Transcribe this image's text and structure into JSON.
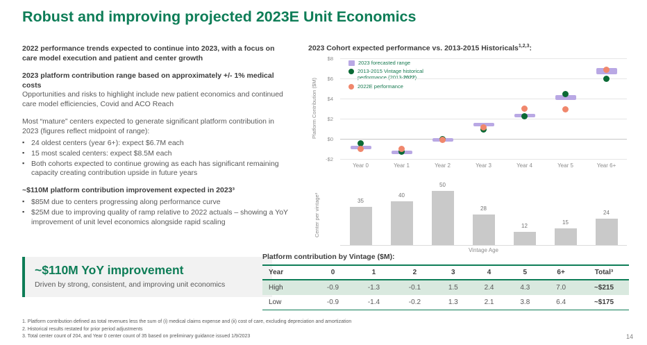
{
  "slide": {
    "title": "Robust and improving projected 2023E Unit Economics",
    "page_number": "14",
    "accent_color": "#0e7d57"
  },
  "left": {
    "para1": "2022 performance trends expected to continue into 2023, with a focus on care model execution and patient and center growth",
    "para2_bold": "2023 platform contribution range based on approximately +/- 1% medical costs",
    "para2_rest": "Opportunities and risks to highlight include new patient economics and continued care model efficiencies, Covid and ACO Reach",
    "para3": "Most “mature” centers expected to generate significant platform contribution in 2023 (figures reflect midpoint of range):",
    "bullets_mature": [
      "24 oldest centers (year 6+): expect $6.7M each",
      "15 most scaled centers: expect $8.5M each",
      "Both cohorts expected to continue growing as each has significant remaining capacity creating contribution upside in future years"
    ],
    "para4": "~$110M platform contribution improvement expected in 2023³",
    "bullets_improvement": [
      "$85M due to centers progressing along performance curve",
      "$25M due to improving quality of ramp relative to 2022 actuals – showing a YoY improvement of unit level economics alongside rapid scaling"
    ],
    "callout": {
      "headline": "~$110M YoY improvement",
      "subtext": "Driven by strong, consistent, and improving unit economics"
    }
  },
  "right": {
    "chart_heading": "2023 Cohort expected performance vs. 2013-2015 Historicals",
    "chart_heading_sup": "1,2,3",
    "chart_heading_suffix": ":"
  },
  "chart_data": [
    {
      "type": "scatter",
      "title": "2023 Cohort expected performance vs. 2013-2015 Historicals",
      "ylabel": "Platform Contribution ($M)",
      "ylim": [
        -2,
        8
      ],
      "grid": true,
      "legend_position": "top-left",
      "yticks": [
        {
          "label": "$8",
          "value": 8
        },
        {
          "label": "$6",
          "value": 6
        },
        {
          "label": "$4",
          "value": 4
        },
        {
          "label": "$2",
          "value": 2
        },
        {
          "label": "$0",
          "value": 0
        },
        {
          "label": "-$2",
          "value": -2
        }
      ],
      "categories": [
        "Year 0",
        "Year 1",
        "Year 2",
        "Year 3",
        "Year 4",
        "Year 5",
        "Year 6+"
      ],
      "series": [
        {
          "name": "2023 forecasted range",
          "type": "range",
          "color": "#b9a8e4",
          "low": [
            -0.9,
            -1.4,
            -0.2,
            1.3,
            2.1,
            3.8,
            6.4
          ],
          "high": [
            -0.9,
            -1.3,
            -0.1,
            1.5,
            2.4,
            4.3,
            7.0
          ]
        },
        {
          "name": "2013-2015 Vintage historical performance (2013-2022)",
          "name_segments": [
            {
              "text": "2013-2015 Vintage historical performance (2013-"
            },
            {
              "text": "2022",
              "bold": true
            },
            {
              "text": ")"
            }
          ],
          "type": "point",
          "color": "#0b6a35",
          "values": [
            -0.5,
            -1.3,
            -0.05,
            0.9,
            2.2,
            4.4,
            5.9
          ]
        },
        {
          "name": "2022E performance",
          "type": "point",
          "color": "#f0876c",
          "values": [
            -1.0,
            -1.05,
            -0.15,
            1.1,
            3.0,
            2.9,
            6.85
          ]
        }
      ]
    },
    {
      "type": "bar",
      "ylabel": "Center per vintage³",
      "xlabel": "Vintage Age",
      "categories": [
        "Year 0",
        "Year 1",
        "Year 2",
        "Year 3",
        "Year 4",
        "Year 5",
        "Year 6+"
      ],
      "values": [
        35,
        40,
        50,
        28,
        12,
        15,
        24
      ],
      "ylim": [
        0,
        50
      ],
      "color": "#c9c9c9"
    },
    {
      "type": "table",
      "title": "Platform contribution by Vintage ($M):",
      "headers": [
        "Year",
        "0",
        "1",
        "2",
        "3",
        "4",
        "5",
        "6+",
        "Total³"
      ],
      "rows": [
        {
          "label": "High",
          "values": [
            "-0.9",
            "-1.3",
            "-0.1",
            "1.5",
            "2.4",
            "4.3",
            "7.0"
          ],
          "total": "~$215",
          "highlight": true
        },
        {
          "label": "Low",
          "values": [
            "-0.9",
            "-1.4",
            "-0.2",
            "1.3",
            "2.1",
            "3.8",
            "6.4"
          ],
          "total": "~$175",
          "highlight": false
        }
      ]
    }
  ],
  "footnotes": [
    "1. Platform contribution defined as total revenues less the sum of (i) medical claims expense and (ii) cost of care, excluding depreciation and amortization",
    "2. Historical results restated for prior period adjustments",
    "3. Total center count of 204, and Year 0 center count of 35 based on preliminary guidance issued 1/9/2023"
  ]
}
